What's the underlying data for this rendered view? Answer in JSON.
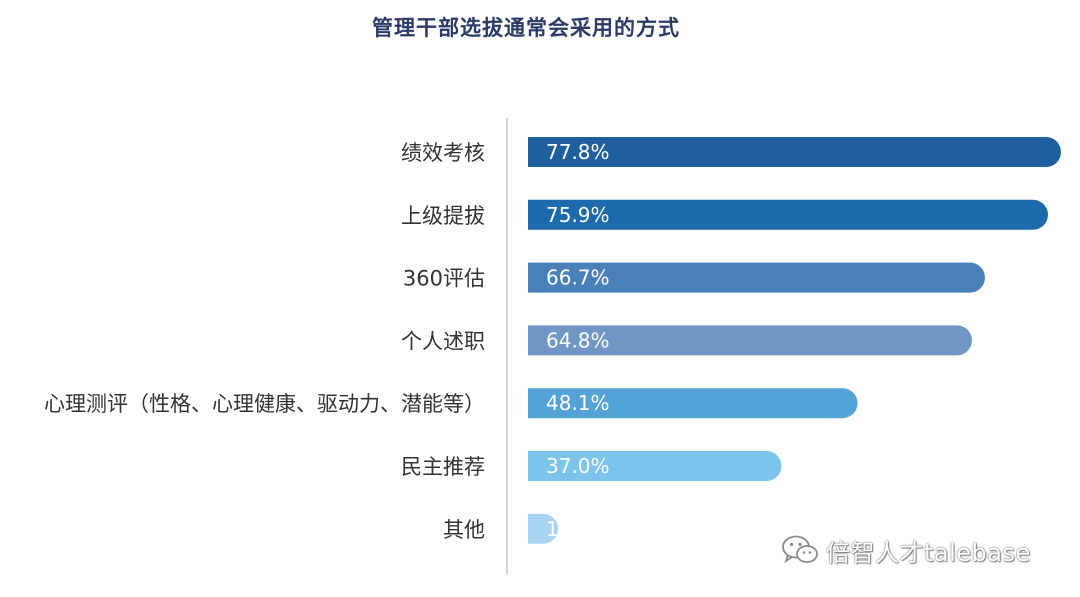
{
  "chart_data": {
    "type": "bar",
    "orientation": "horizontal",
    "title": "管理干部选拔通常会采用的方式",
    "categories": [
      "绩效考核",
      "上级提拔",
      "360评估",
      "个人述职",
      "心理测评（性格、心理健康、驱动力、潜能等）",
      "民主推荐",
      "其他"
    ],
    "values": [
      77.8,
      75.9,
      66.7,
      64.8,
      48.1,
      37.0,
      1.9
    ],
    "value_labels": [
      "77.8%",
      "75.9%",
      "66.7%",
      "64.8%",
      "48.1%",
      "37.0%",
      "1.9%"
    ],
    "bar_colors": [
      "#1f5f9e",
      "#1d6aad",
      "#4a80b8",
      "#6f96c4",
      "#54a3d6",
      "#7cc4ec",
      "#a8d4f2"
    ],
    "xlim": [
      0,
      77.8
    ],
    "grid": false,
    "legend": "none"
  },
  "watermark": {
    "text": "倍智人才talebase",
    "icon": "wechat-icon"
  }
}
